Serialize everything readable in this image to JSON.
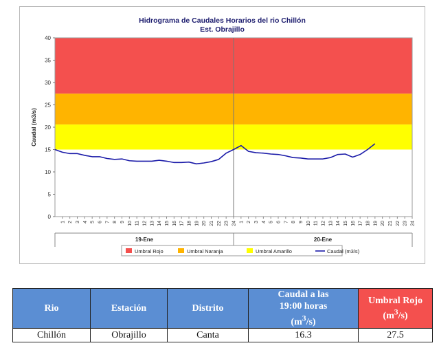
{
  "chart_data": {
    "type": "line",
    "title": "Hidrograma de Caudales Horarios del rio Chillón",
    "subtitle": "Est. Obrajillo",
    "ylabel": "Caudal  (m3/s)",
    "ylim": [
      0,
      40
    ],
    "yticks": [
      "0",
      "5",
      "10",
      "15",
      "20",
      "25",
      "30",
      "35",
      "40"
    ],
    "hour_ticks": [
      "1",
      "2",
      "3",
      "4",
      "5",
      "6",
      "7",
      "8",
      "9",
      "10",
      "11",
      "12",
      "13",
      "14",
      "15",
      "16",
      "17",
      "18",
      "19",
      "20",
      "21",
      "22",
      "23",
      "24"
    ],
    "days": [
      "19-Ene",
      "20-Ene"
    ],
    "thresholds": [
      {
        "name": "Umbral Rojo",
        "from": 27.5,
        "to": 40,
        "color": "#f4504e"
      },
      {
        "name": "Umbral Naranja",
        "from": 20.6,
        "to": 27.5,
        "color": "#ffb400"
      },
      {
        "name": "Umbral Amarillo",
        "from": 15,
        "to": 20.6,
        "color": "#ffff00"
      }
    ],
    "legend": [
      "Umbral Rojo",
      "Umbral Naranja",
      "Umbral Amarillo",
      "Caudal (m3/s)"
    ],
    "legend_colors": [
      "#f4504e",
      "#ffb400",
      "#ffff00",
      "#1a1aa8"
    ],
    "series": [
      {
        "name": "Caudal (m3/s)",
        "color": "#1a1aa8",
        "values": [
          15.0,
          14.4,
          14.1,
          14.1,
          13.7,
          13.4,
          13.4,
          13.0,
          12.8,
          12.9,
          12.5,
          12.4,
          12.4,
          12.4,
          12.6,
          12.4,
          12.1,
          12.1,
          12.2,
          11.8,
          12.0,
          12.3,
          12.8,
          14.2,
          15.0,
          15.9,
          14.6,
          14.3,
          14.2,
          14.0,
          13.9,
          13.6,
          13.2,
          13.1,
          12.9,
          12.9,
          12.9,
          13.2,
          13.9,
          14.0,
          13.3,
          13.9,
          15.0,
          16.3
        ]
      }
    ]
  },
  "table": {
    "headers": [
      "Rio",
      "Estación",
      "Distrito",
      "Caudal a las 19:00 horas (m3/s)",
      "Umbral Rojo (m3/s)"
    ],
    "row": [
      "Chillón",
      "Obrajillo",
      "Canta",
      "16.3",
      "27.5"
    ]
  }
}
